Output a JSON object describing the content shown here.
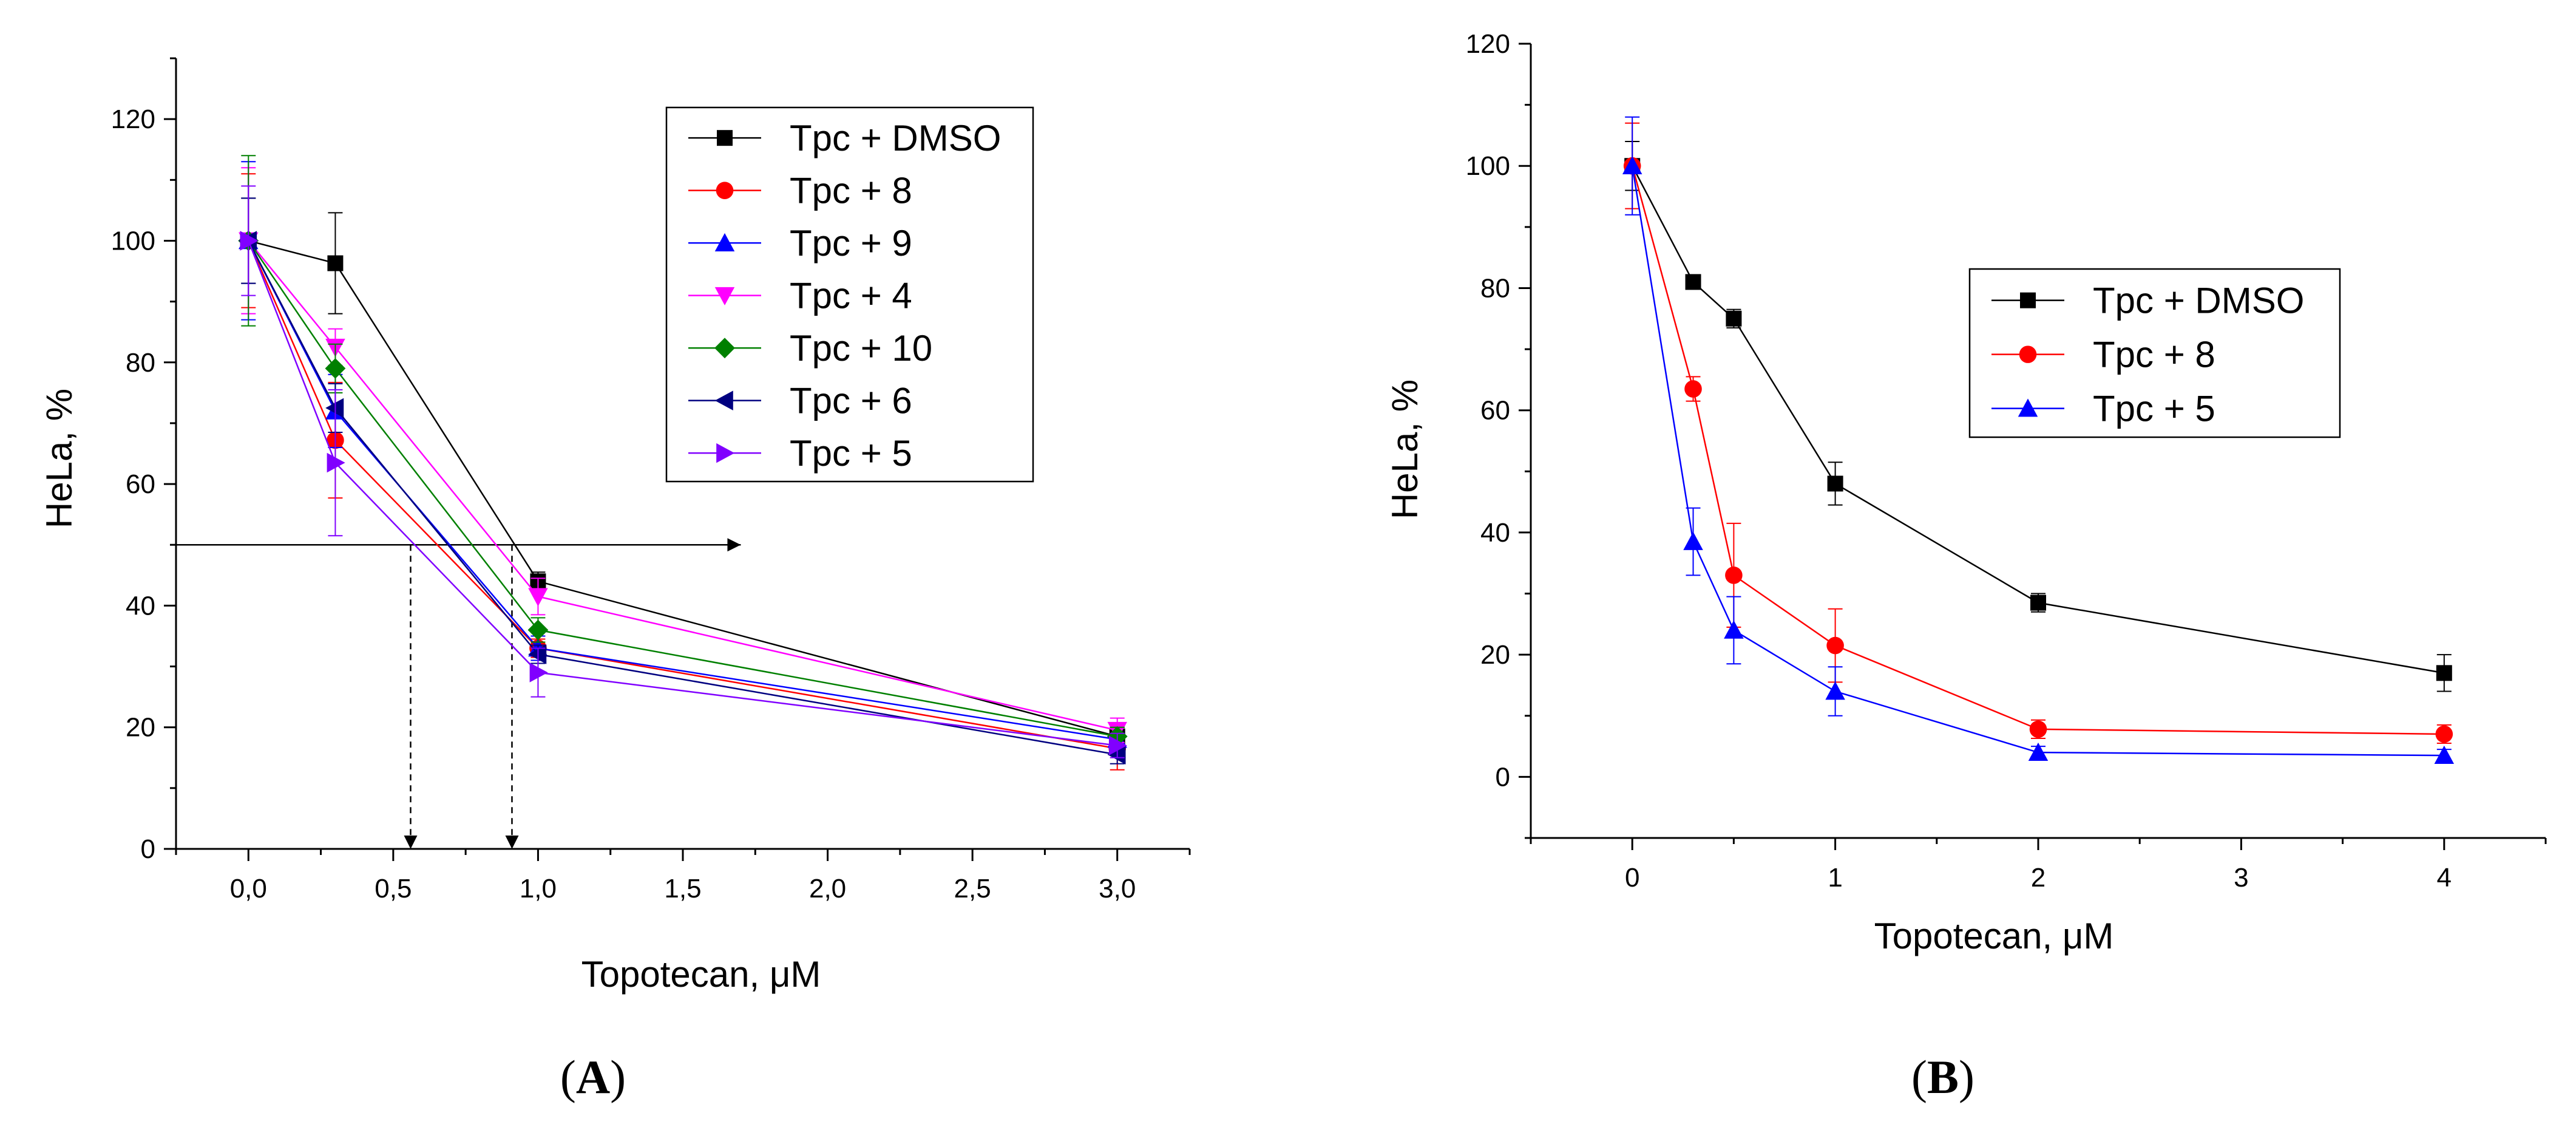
{
  "chart_data": [
    {
      "panel": "A",
      "type": "line",
      "xlabel": "Topotecan, μM",
      "ylabel": "HeLa, %",
      "xlim": [
        -0.25,
        3.25
      ],
      "ylim": [
        0,
        130
      ],
      "xticks": [
        {
          "value": 0,
          "label": "0,0"
        },
        {
          "value": 0.5,
          "label": "0,5"
        },
        {
          "value": 1,
          "label": "1,0"
        },
        {
          "value": 1.5,
          "label": "1,5"
        },
        {
          "value": 2,
          "label": "2,0"
        },
        {
          "value": 2.5,
          "label": "2,5"
        },
        {
          "value": 3,
          "label": "3,0"
        }
      ],
      "yticks": [
        {
          "value": 0,
          "label": "0"
        },
        {
          "value": 20,
          "label": "20"
        },
        {
          "value": 40,
          "label": "40"
        },
        {
          "value": 60,
          "label": "60"
        },
        {
          "value": 80,
          "label": "80"
        },
        {
          "value": 100,
          "label": "100"
        },
        {
          "value": 120,
          "label": "120"
        }
      ],
      "legend_position": "top-right",
      "x": [
        0,
        0.3,
        1,
        3
      ],
      "series": [
        {
          "name": "Tpc + DMSO",
          "color": "#000000",
          "marker": "square",
          "values": [
            100,
            96.3,
            44,
            18.5
          ],
          "errors": [
            7,
            8.3,
            1.5,
            1.5
          ]
        },
        {
          "name": "Tpc + 8",
          "color": "#ff0000",
          "marker": "circle",
          "values": [
            100,
            67.2,
            33,
            16.5
          ],
          "errors": [
            11,
            9.5,
            1.5,
            3.5
          ]
        },
        {
          "name": "Tpc + 9",
          "color": "#0000ff",
          "marker": "triangle-up",
          "values": [
            100,
            72,
            33,
            18
          ],
          "errors": [
            13,
            6,
            2,
            2
          ]
        },
        {
          "name": "Tpc + 4",
          "color": "#ff00ff",
          "marker": "triangle-down",
          "values": [
            100,
            82.5,
            41.5,
            19.5
          ],
          "errors": [
            12,
            3,
            3,
            2
          ]
        },
        {
          "name": "Tpc + 10",
          "color": "#008000",
          "marker": "diamond",
          "values": [
            100,
            79,
            36,
            18.5
          ],
          "errors": [
            14,
            4,
            2,
            1.5
          ]
        },
        {
          "name": "Tpc + 6",
          "color": "#000080",
          "marker": "triangle-left",
          "values": [
            100,
            72.5,
            32,
            15.5
          ],
          "errors": [
            7,
            4,
            1.5,
            1.5
          ]
        },
        {
          "name": "Tpc + 5",
          "color": "#8000ff",
          "marker": "triangle-right",
          "values": [
            100,
            63.5,
            29,
            17
          ],
          "errors": [
            9,
            12,
            4,
            2
          ]
        }
      ],
      "annotations": {
        "horizontal_line": {
          "y": 50,
          "x_from": -0.25,
          "x_to": 1.7
        },
        "dashed_arrows_x": [
          0.56,
          0.91
        ]
      }
    },
    {
      "panel": "B",
      "type": "line",
      "xlabel": "Topotecan, μM",
      "ylabel": "HeLa, %",
      "xlim": [
        -0.5,
        4.5
      ],
      "ylim": [
        -10,
        120
      ],
      "xticks": [
        {
          "value": 0,
          "label": "0"
        },
        {
          "value": 1,
          "label": "1"
        },
        {
          "value": 2,
          "label": "2"
        },
        {
          "value": 3,
          "label": "3"
        },
        {
          "value": 4,
          "label": "4"
        }
      ],
      "yticks": [
        {
          "value": 0,
          "label": "0"
        },
        {
          "value": 20,
          "label": "20"
        },
        {
          "value": 40,
          "label": "40"
        },
        {
          "value": 60,
          "label": "60"
        },
        {
          "value": 80,
          "label": "80"
        },
        {
          "value": 100,
          "label": "100"
        },
        {
          "value": 120,
          "label": "120"
        }
      ],
      "legend_position": "center-right",
      "x": [
        0,
        0.3,
        0.5,
        1,
        2,
        4
      ],
      "series": [
        {
          "name": "Tpc + DMSO",
          "color": "#000000",
          "marker": "square",
          "values": [
            100,
            81,
            75,
            48,
            28.5,
            17
          ],
          "errors": [
            4,
            0.8,
            1.5,
            3.5,
            1.5,
            3
          ]
        },
        {
          "name": "Tpc + 8",
          "color": "#ff0000",
          "marker": "circle",
          "values": [
            100,
            63.5,
            33,
            21.5,
            7.8,
            7
          ],
          "errors": [
            7,
            2,
            8.5,
            6,
            1.5,
            1.5
          ]
        },
        {
          "name": "Tpc + 5",
          "color": "#0000ff",
          "marker": "triangle-up",
          "values": [
            100,
            38.5,
            24,
            14,
            4,
            3.5
          ],
          "errors": [
            8,
            5.5,
            5.5,
            4,
            1,
            1
          ]
        }
      ]
    }
  ],
  "panel_labels": {
    "a": {
      "open": "(",
      "letter": "A",
      "close": ")"
    },
    "b": {
      "open": "(",
      "letter": "B",
      "close": ")"
    }
  }
}
